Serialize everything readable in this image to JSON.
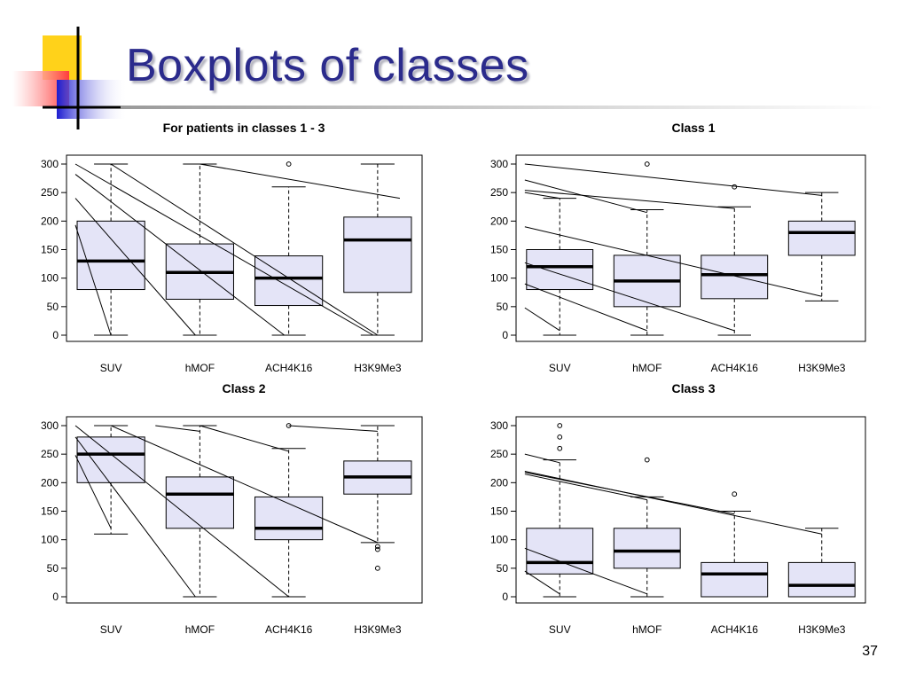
{
  "slide": {
    "title": "Boxplots of classes",
    "page_number": "37"
  },
  "colors": {
    "title": "#2b2b8c",
    "box_fill": "#e4e4f7",
    "deco_yellow": "#ffd21a",
    "deco_red": "#ff4a4a",
    "deco_blue": "#2020d8"
  },
  "chart_data": [
    {
      "type": "boxplot",
      "title": "For patients in classes 1 - 3",
      "categories": [
        "SUV",
        "hMOF",
        "ACH4K16",
        "H3K9Me3"
      ],
      "ylim": [
        0,
        300
      ],
      "yticks": [
        0,
        50,
        100,
        150,
        200,
        250,
        300
      ],
      "boxes": [
        {
          "whisker_low": 0,
          "q1": 80,
          "median": 130,
          "q3": 200,
          "whisker_high": 300,
          "outliers": []
        },
        {
          "whisker_low": 0,
          "q1": 63,
          "median": 110,
          "q3": 160,
          "whisker_high": 300,
          "outliers": []
        },
        {
          "whisker_low": 0,
          "q1": 52,
          "median": 100,
          "q3": 139,
          "whisker_high": 260,
          "outliers": [
            300
          ]
        },
        {
          "whisker_low": 0,
          "q1": 75,
          "median": 167,
          "q3": 207,
          "whisker_high": 300,
          "outliers": []
        }
      ],
      "lines": [
        {
          "from": [
            0.6,
            193
          ],
          "to": [
            1,
            0
          ]
        },
        {
          "from": [
            0.6,
            240
          ],
          "to": [
            1.95,
            0
          ]
        },
        {
          "from": [
            0.6,
            282
          ],
          "to": [
            2.95,
            0
          ]
        },
        {
          "from": [
            0.6,
            300
          ],
          "to": [
            3.95,
            0
          ]
        },
        {
          "from": [
            1.0,
            300
          ],
          "to": [
            4.0,
            0
          ]
        },
        {
          "from": [
            2.0,
            300
          ],
          "to": [
            4.25,
            240
          ]
        }
      ]
    },
    {
      "type": "boxplot",
      "title": "Class 1",
      "categories": [
        "SUV",
        "hMOF",
        "ACH4K16",
        "H3K9Me3"
      ],
      "ylim": [
        0,
        300
      ],
      "yticks": [
        0,
        50,
        100,
        150,
        200,
        250,
        300
      ],
      "boxes": [
        {
          "whisker_low": 0,
          "q1": 80,
          "median": 120,
          "q3": 150,
          "whisker_high": 240,
          "outliers": []
        },
        {
          "whisker_low": 0,
          "q1": 50,
          "median": 95,
          "q3": 140,
          "whisker_high": 220,
          "outliers": [
            300
          ]
        },
        {
          "whisker_low": 0,
          "q1": 64,
          "median": 106,
          "q3": 140,
          "whisker_high": 225,
          "outliers": [
            260
          ]
        },
        {
          "whisker_low": 60,
          "q1": 140,
          "median": 180,
          "q3": 200,
          "whisker_high": 250,
          "outliers": []
        }
      ],
      "lines": [
        {
          "from": [
            0.6,
            300
          ],
          "to": [
            4.0,
            245
          ]
        },
        {
          "from": [
            0.6,
            272
          ],
          "to": [
            2.0,
            215
          ]
        },
        {
          "from": [
            0.6,
            254
          ],
          "to": [
            3.0,
            222
          ]
        },
        {
          "from": [
            0.6,
            250
          ],
          "to": [
            1.0,
            240
          ]
        },
        {
          "from": [
            0.6,
            190
          ],
          "to": [
            4.0,
            68
          ]
        },
        {
          "from": [
            0.6,
            127
          ],
          "to": [
            3.0,
            8
          ]
        },
        {
          "from": [
            0.6,
            90
          ],
          "to": [
            2.0,
            8
          ]
        },
        {
          "from": [
            0.6,
            48
          ],
          "to": [
            1.0,
            8
          ]
        }
      ]
    },
    {
      "type": "boxplot",
      "title": "Class 2",
      "categories": [
        "SUV",
        "hMOF",
        "ACH4K16",
        "H3K9Me3"
      ],
      "ylim": [
        0,
        300
      ],
      "yticks": [
        0,
        50,
        100,
        150,
        200,
        250,
        300
      ],
      "boxes": [
        {
          "whisker_low": 110,
          "q1": 200,
          "median": 250,
          "q3": 280,
          "whisker_high": 300,
          "outliers": []
        },
        {
          "whisker_low": 0,
          "q1": 120,
          "median": 180,
          "q3": 210,
          "whisker_high": 300,
          "outliers": []
        },
        {
          "whisker_low": 0,
          "q1": 100,
          "median": 120,
          "q3": 175,
          "whisker_high": 260,
          "outliers": [
            300
          ]
        },
        {
          "whisker_low": 95,
          "q1": 180,
          "median": 210,
          "q3": 238,
          "whisker_high": 300,
          "outliers": [
            88,
            83,
            50
          ]
        }
      ],
      "lines": [
        {
          "from": [
            0.6,
            248
          ],
          "to": [
            1.0,
            120
          ]
        },
        {
          "from": [
            0.6,
            280
          ],
          "to": [
            1.95,
            0
          ]
        },
        {
          "from": [
            0.6,
            300
          ],
          "to": [
            3.0,
            0
          ]
        },
        {
          "from": [
            1.0,
            300
          ],
          "to": [
            4.0,
            95
          ]
        },
        {
          "from": [
            1.5,
            300
          ],
          "to": [
            2.0,
            290
          ]
        },
        {
          "from": [
            2.0,
            300
          ],
          "to": [
            3.0,
            255
          ]
        },
        {
          "from": [
            3.0,
            300
          ],
          "to": [
            4.0,
            290
          ]
        }
      ]
    },
    {
      "type": "boxplot",
      "title": "Class 3",
      "categories": [
        "SUV",
        "hMOF",
        "ACH4K16",
        "H3K9Me3"
      ],
      "ylim": [
        0,
        300
      ],
      "yticks": [
        0,
        50,
        100,
        150,
        200,
        250,
        300
      ],
      "boxes": [
        {
          "whisker_low": 0,
          "q1": 40,
          "median": 60,
          "q3": 120,
          "whisker_high": 240,
          "outliers": [
            260,
            280,
            300
          ]
        },
        {
          "whisker_low": 0,
          "q1": 50,
          "median": 80,
          "q3": 120,
          "whisker_high": 175,
          "outliers": [
            240
          ]
        },
        {
          "whisker_low": 0,
          "q1": 0,
          "median": 40,
          "q3": 60,
          "whisker_high": 150,
          "outliers": [
            180
          ]
        },
        {
          "whisker_low": 0,
          "q1": 0,
          "median": 20,
          "q3": 60,
          "whisker_high": 120,
          "outliers": []
        }
      ],
      "lines": [
        {
          "from": [
            0.6,
            250
          ],
          "to": [
            1.0,
            235
          ]
        },
        {
          "from": [
            0.6,
            220
          ],
          "to": [
            4.0,
            110
          ]
        },
        {
          "from": [
            0.6,
            218
          ],
          "to": [
            3.0,
            145
          ]
        },
        {
          "from": [
            0.6,
            215
          ],
          "to": [
            2.0,
            170
          ]
        },
        {
          "from": [
            0.6,
            85
          ],
          "to": [
            2.0,
            5
          ]
        },
        {
          "from": [
            0.6,
            45
          ],
          "to": [
            1.0,
            5
          ]
        }
      ]
    }
  ]
}
